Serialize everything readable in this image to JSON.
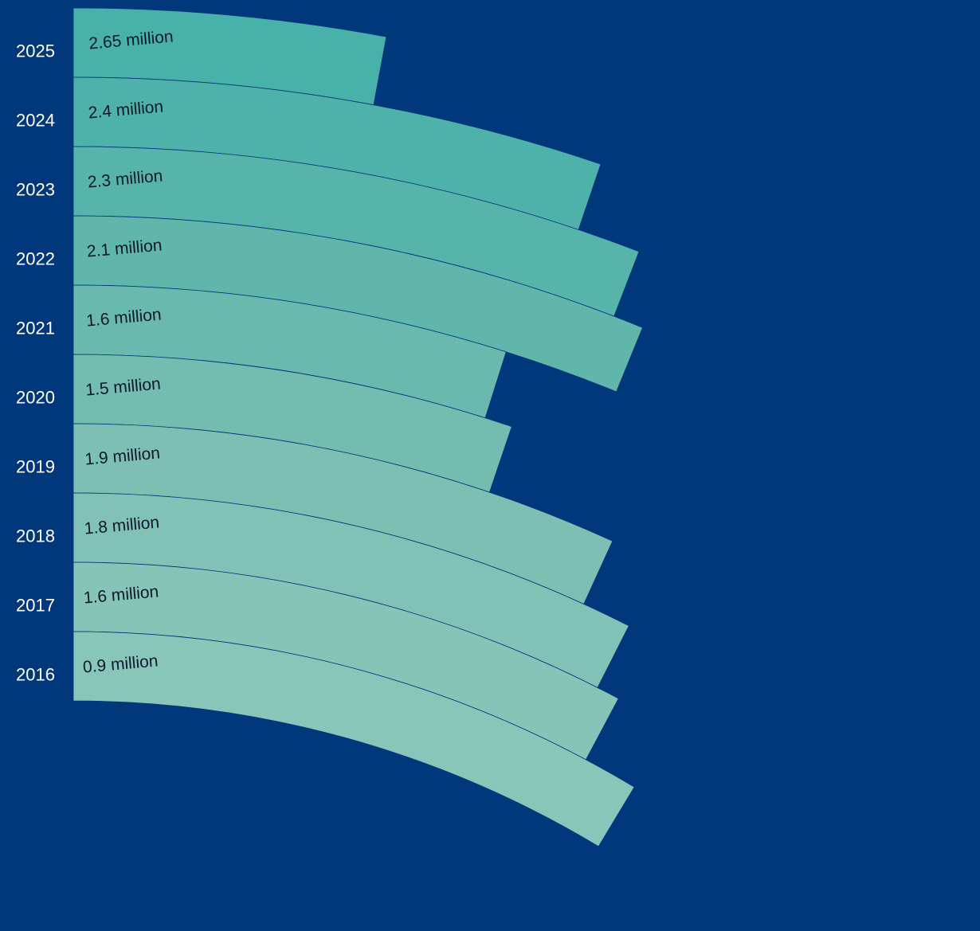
{
  "chart_data": {
    "type": "radial-bar",
    "categories": [
      "2016",
      "2017",
      "2018",
      "2019",
      "2020",
      "2021",
      "2022",
      "2023",
      "2024",
      "2025"
    ],
    "values": [
      0.9,
      1.6,
      1.8,
      1.9,
      1.5,
      1.6,
      2.1,
      2.3,
      2.4,
      2.65
    ],
    "value_labels": [
      "0.9 million",
      "1.6 million",
      "1.8 million",
      "1.9 million",
      "1.5 million",
      "1.6 million",
      "2.1 million",
      "2.3 million",
      "2.4 million",
      "2.65 million"
    ],
    "title": "",
    "xlabel": "",
    "ylabel": "",
    "colors": [
      "#88c6b9",
      "#86c4b8",
      "#82c1b6",
      "#7ebfb4",
      "#74bbb0",
      "#6ab9ae",
      "#61b6ac",
      "#57b4ab",
      "#4fb2aa",
      "#47b1aa"
    ],
    "separator_color": "#01377b",
    "background_color": "#01377b",
    "label_text_color": "#0b1a2a",
    "year_text_color": "#ffffff"
  }
}
